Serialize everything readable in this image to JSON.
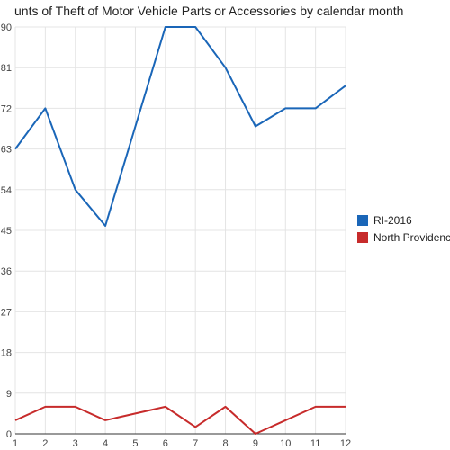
{
  "chart_data": {
    "type": "line",
    "title": "unts of Theft of Motor Vehicle Parts or Accessories by calendar month",
    "xlabel": "",
    "ylabel": "",
    "x": [
      1,
      2,
      3,
      4,
      5,
      6,
      7,
      8,
      9,
      10,
      11,
      12
    ],
    "x_tick_labels": [
      "1",
      "2",
      "3",
      "4",
      "5",
      "6",
      "7",
      "8",
      "9",
      "10",
      "11",
      "12"
    ],
    "xlim": [
      1,
      12
    ],
    "ylim": [
      0,
      90
    ],
    "y_ticks": [
      0,
      9,
      18,
      27,
      36,
      45,
      54,
      63,
      72,
      81,
      90
    ],
    "y_tick_labels": [
      "0",
      "9",
      "18",
      "27",
      "36",
      "45",
      "54",
      "63",
      "72",
      "81",
      "90"
    ],
    "grid": true,
    "legend_position": "right",
    "series": [
      {
        "name": "RI-2016",
        "color": "#1a66b8",
        "values": [
          63,
          72,
          54,
          46,
          68,
          90,
          90,
          81,
          68,
          72,
          72,
          77
        ]
      },
      {
        "name": "North Providence",
        "color": "#c72b2b",
        "values": [
          3,
          6,
          6,
          3,
          4.5,
          6,
          1.5,
          6,
          0,
          3,
          6,
          6
        ]
      }
    ]
  }
}
